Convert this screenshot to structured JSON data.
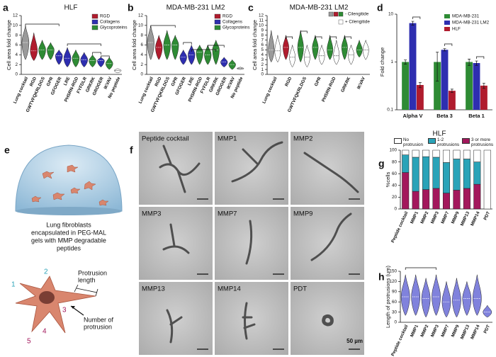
{
  "chart_data": [
    {
      "type": "violin",
      "panel_label": "a",
      "title": "HLF",
      "ylabel": "Cell area fold change",
      "categories": [
        "Lung cocktail",
        "RGD",
        "GWTVFQKRLDGS",
        "GPR",
        "GFOGER",
        "LRE",
        "PHSRN-RGD",
        "FYFDLR",
        "GRKRK",
        "GROGER",
        "IKVAV",
        "No peptide"
      ],
      "values": [
        6.5,
        4.8,
        5,
        5,
        3.8,
        3.3,
        3.3,
        3,
        2.8,
        2.8,
        2.2,
        0.8
      ],
      "min": [
        3,
        2.8,
        3,
        3,
        2,
        1.5,
        1.5,
        1.5,
        1.5,
        1.5,
        1,
        0.3
      ],
      "max": [
        10,
        8.5,
        7,
        6.5,
        5,
        5.5,
        5,
        4.5,
        4,
        3.5,
        3.5,
        1.2
      ],
      "colors": [
        "#9a9a9a",
        "#b01c2e",
        "#2e8b34",
        "#2e8b34",
        "#2e2eb0",
        "#2e2eb0",
        "#2e8b34",
        "#2e2eb0",
        "#2e8b34",
        "#2e2eb0",
        "#2e8b34",
        "#ffffff"
      ],
      "legend": [
        {
          "name": "RGD",
          "color": "#b01c2e"
        },
        {
          "name": "Collagens",
          "color": "#2e2eb0"
        },
        {
          "name": "Glycoproteins",
          "color": "#2e8b34"
        }
      ],
      "ylim": [
        0,
        12
      ],
      "yticks": [
        0,
        2,
        4,
        6,
        8,
        10,
        12
      ],
      "annotations": [
        "****",
        "***",
        "**",
        "*"
      ]
    },
    {
      "type": "violin",
      "panel_label": "b",
      "title": "MDA-MB-231 LM2",
      "ylabel": "Cell area fold change",
      "categories": [
        "Lung cocktail",
        "RGD",
        "GWTVFQKRLDGS",
        "GPR",
        "GFOGER",
        "LRE",
        "PHSRN-RGD",
        "FYFDLR",
        "GRKRK",
        "GROGER",
        "IKVAV",
        "No peptide"
      ],
      "values": [
        6.5,
        5.5,
        6,
        6,
        3.5,
        4,
        4.5,
        4,
        5,
        2.5,
        2,
        1.2
      ],
      "min": [
        3,
        3,
        3,
        3,
        2,
        2,
        2,
        2,
        2,
        1.5,
        1,
        1
      ],
      "max": [
        10,
        8,
        9,
        8,
        5,
        6,
        6,
        6,
        7,
        3.5,
        3,
        1.5
      ],
      "colors": [
        "#9a9a9a",
        "#b01c2e",
        "#2e8b34",
        "#2e8b34",
        "#2e2eb0",
        "#2e2eb0",
        "#2e8b34",
        "#2e8b34",
        "#2e8b34",
        "#2e2eb0",
        "#2e8b34",
        "#dddddd"
      ],
      "legend": [
        {
          "name": "RGD",
          "color": "#b01c2e"
        },
        {
          "name": "Collagens",
          "color": "#2e2eb0"
        },
        {
          "name": "Glycoproteins",
          "color": "#2e8b34"
        }
      ],
      "ylim": [
        0,
        12
      ],
      "yticks": [
        0,
        2,
        4,
        6,
        8,
        10,
        12
      ],
      "annotations": [
        "****",
        "**",
        "***",
        "****",
        "*"
      ]
    },
    {
      "type": "paired_violin",
      "panel_label": "c",
      "title": "MDA-MB-231 LM2",
      "ylabel": "Cell area fold change",
      "categories": [
        "Lung cocktail",
        "RGD",
        "GWTVFQKRLDGS",
        "GPR",
        "PHSRN-RGD",
        "GRKRK",
        "IKVAV"
      ],
      "series": [
        {
          "name": "- Cilengitide",
          "legend_colors": [
            "#9a9a9a",
            "#b01c2e",
            "#2e8b34"
          ],
          "colors": [
            "#9a9a9a",
            "#b01c2e",
            "#2e8b34",
            "#2e8b34",
            "#2e8b34",
            "#2e8b34",
            "#2e8b34"
          ],
          "values": [
            5,
            5.5,
            5.5,
            5.5,
            5,
            5.5,
            5
          ],
          "min": [
            2.5,
            3,
            2.5,
            3,
            3,
            3,
            3.5
          ],
          "max": [
            9,
            8,
            9,
            8,
            8,
            8,
            7
          ]
        },
        {
          "name": "+ Cilengitide",
          "color": "#ffffff",
          "values": [
            4.8,
            3.5,
            3.5,
            3.8,
            3.8,
            4,
            5
          ],
          "min": [
            2.5,
            1.5,
            1.5,
            2,
            2,
            2,
            3
          ],
          "max": [
            8,
            6,
            6,
            6,
            7,
            6,
            7
          ]
        }
      ],
      "ylim": [
        0,
        12
      ],
      "yticks": [
        0,
        1,
        2,
        3,
        4,
        5,
        6,
        7,
        8,
        9,
        10,
        11,
        12
      ],
      "annotations": [
        "***",
        "***",
        "***",
        "***",
        "***"
      ]
    },
    {
      "type": "bar",
      "panel_label": "d",
      "ylabel": "Fold change",
      "log_scale": true,
      "categories": [
        "Alpha V",
        "Beta 3",
        "Beta 1"
      ],
      "series": [
        {
          "name": "MDA-MB-231",
          "color": "#2e8b34",
          "values": [
            1,
            1,
            1
          ],
          "errors": [
            0.1,
            0.6,
            0.15
          ]
        },
        {
          "name": "MDA-MB-231 LM2",
          "color": "#2e2eb0",
          "values": [
            6.5,
            1.8,
            0.95
          ],
          "errors": [
            0.6,
            0.1,
            0.1
          ]
        },
        {
          "name": "HLF",
          "color": "#b01c2e",
          "values": [
            0.33,
            0.25,
            0.32
          ],
          "errors": [
            0.04,
            0.02,
            0.04
          ]
        }
      ],
      "ylim": [
        0.1,
        10
      ],
      "yticks": [
        0.1,
        1,
        10
      ],
      "annotations": [
        "*",
        "**",
        "*"
      ]
    },
    {
      "type": "stacked_bar",
      "panel_label": "g",
      "title": "HLF",
      "ylabel": "%cells",
      "categories": [
        "Peptide cocktail",
        "MMP1",
        "MMP2",
        "MMP3",
        "MMP7",
        "MMP9",
        "MMP13",
        "MMP14",
        "PDT"
      ],
      "series": [
        {
          "name": "No protrusion",
          "color": "#ffffff",
          "values": [
            8,
            12,
            11,
            12,
            21,
            15,
            15,
            20,
            100
          ]
        },
        {
          "name": "1-2 protrusions",
          "color": "#2aa3b8",
          "values": [
            30,
            58,
            56,
            53,
            52,
            53,
            50,
            38,
            0
          ]
        },
        {
          "name": "3 or more protrusions",
          "color": "#a3185c",
          "values": [
            62,
            30,
            33,
            35,
            27,
            32,
            35,
            42,
            0
          ]
        }
      ],
      "ylim": [
        0,
        100
      ],
      "yticks": [
        0,
        20,
        40,
        60,
        80,
        100
      ]
    },
    {
      "type": "violin",
      "panel_label": "h",
      "ylabel": "Length of protrusions (um)",
      "categories": [
        "Peptide cocktail",
        "MMP1",
        "MMP2",
        "MMP3",
        "MMP7",
        "MMP9",
        "MMP13",
        "MMP14",
        "PDT"
      ],
      "values": [
        75,
        75,
        70,
        75,
        60,
        65,
        70,
        70,
        30
      ],
      "min": [
        20,
        20,
        15,
        20,
        15,
        15,
        20,
        20,
        15
      ],
      "max": [
        140,
        140,
        130,
        140,
        120,
        130,
        120,
        140,
        50
      ],
      "color": "#8082dc",
      "ylim": [
        0,
        150
      ],
      "yticks": [
        0,
        30,
        60,
        90,
        120,
        150
      ],
      "annotations": [
        "****",
        "**",
        "****",
        "***",
        "****"
      ]
    }
  ],
  "diagram_e": {
    "panel_label": "e",
    "caption_lines": [
      "Lung fibroblasts",
      "encapsulated in PEG-MAL",
      "gels with MMP degradable",
      "peptides"
    ],
    "length_lines": [
      "Protrusion",
      "length"
    ],
    "number_lines": [
      "Number of",
      "protrusion"
    ],
    "counts": [
      1,
      2,
      3,
      4,
      5
    ]
  },
  "micrographs_f": {
    "panel_label": "f",
    "tiles": [
      "Peptide cocktail",
      "MMP1",
      "MMP2",
      "MMP3",
      "MMP7",
      "MMP9",
      "MMP13",
      "MMP14",
      "PDT"
    ],
    "scale_label": "50 µm"
  }
}
